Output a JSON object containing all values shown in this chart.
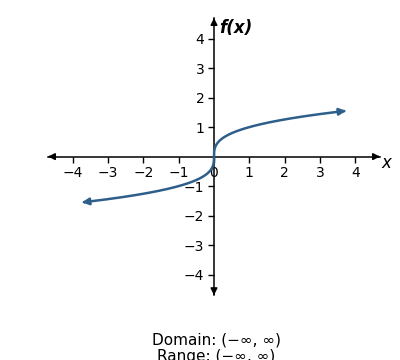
{
  "title": "f(x)",
  "xlabel": "x",
  "xlim": [
    -4.7,
    4.7
  ],
  "ylim": [
    -4.7,
    4.7
  ],
  "xticks": [
    -4,
    -3,
    -2,
    -1,
    0,
    1,
    2,
    3,
    4
  ],
  "yticks": [
    -4,
    -3,
    -2,
    -1,
    1,
    2,
    3,
    4
  ],
  "curve_color": "#2E5F8A",
  "curve_linewidth": 1.8,
  "background_color": "#ffffff",
  "domain_label": "Domain: (−∞, ∞)",
  "range_label": "Range: (−∞, ∞)",
  "annotation_fontsize": 11,
  "axis_label_fontsize": 12,
  "tick_fontsize": 10,
  "x_curve_start": -3.6,
  "x_curve_end": 3.6,
  "arrow_mutation_scale": 10
}
